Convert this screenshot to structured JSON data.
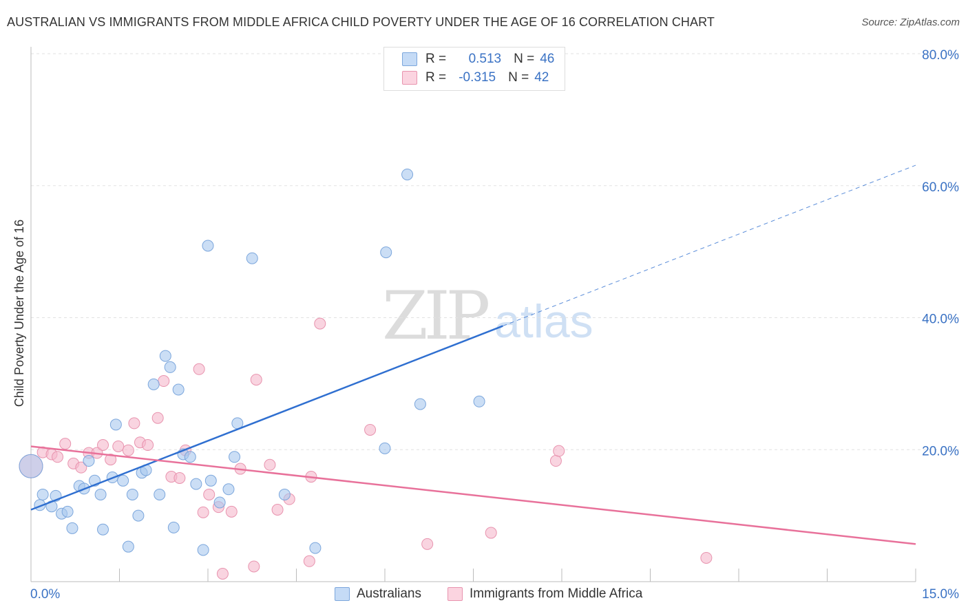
{
  "title": "AUSTRALIAN VS IMMIGRANTS FROM MIDDLE AFRICA CHILD POVERTY UNDER THE AGE OF 16 CORRELATION CHART",
  "source": "Source: ZipAtlas.com",
  "watermark": {
    "zip": "ZIP",
    "atlas": "atlas"
  },
  "legend": {
    "r_label": "R =",
    "n_label": "N =",
    "rows": [
      {
        "r": "0.513",
        "n": "46",
        "color": "#a9c8ef"
      },
      {
        "r": "-0.315",
        "n": "42",
        "color": "#f5b8cb"
      }
    ]
  },
  "colors": {
    "blue_point": "#a9c8ef",
    "blue_stroke": "#7ba6dc",
    "blue_line": "#2f6fd0",
    "pink_point": "#f5b8cb",
    "pink_stroke": "#e893ae",
    "pink_line": "#e8719a",
    "tick_label": "#3a72c4"
  },
  "chart_data": {
    "type": "scatter",
    "title": "AUSTRALIAN VS IMMIGRANTS FROM MIDDLE AFRICA CHILD POVERTY UNDER THE AGE OF 16 CORRELATION CHART",
    "xlabel": "",
    "ylabel": "Child Poverty Under the Age of 16",
    "xlim": [
      0,
      15
    ],
    "ylim": [
      0,
      80
    ],
    "x_tick_labels": [
      "0.0%",
      "15.0%"
    ],
    "y_ticks": [
      20,
      40,
      60,
      80
    ],
    "y_tick_labels": [
      "20.0%",
      "40.0%",
      "60.0%",
      "80.0%"
    ],
    "grid": true,
    "legend_position": "top-center",
    "series": [
      {
        "name": "Australians",
        "points": [
          [
            0.0,
            17.5
          ],
          [
            0.15,
            11.6
          ],
          [
            0.2,
            13.2
          ],
          [
            0.35,
            11.4
          ],
          [
            0.42,
            13.0
          ],
          [
            0.52,
            10.3
          ],
          [
            0.62,
            10.6
          ],
          [
            0.7,
            8.1
          ],
          [
            0.82,
            14.5
          ],
          [
            0.9,
            14.1
          ],
          [
            0.98,
            18.3
          ],
          [
            1.08,
            15.3
          ],
          [
            1.18,
            13.2
          ],
          [
            1.22,
            7.9
          ],
          [
            1.38,
            15.8
          ],
          [
            1.44,
            23.8
          ],
          [
            1.56,
            15.3
          ],
          [
            1.65,
            5.3
          ],
          [
            1.72,
            13.2
          ],
          [
            1.82,
            10.0
          ],
          [
            1.88,
            16.5
          ],
          [
            1.95,
            16.9
          ],
          [
            2.08,
            29.9
          ],
          [
            2.18,
            13.2
          ],
          [
            2.28,
            34.2
          ],
          [
            2.36,
            32.5
          ],
          [
            2.42,
            8.2
          ],
          [
            2.5,
            29.1
          ],
          [
            2.58,
            19.3
          ],
          [
            2.7,
            18.9
          ],
          [
            2.8,
            14.8
          ],
          [
            2.92,
            4.8
          ],
          [
            3.0,
            50.9
          ],
          [
            3.05,
            15.3
          ],
          [
            3.2,
            12.0
          ],
          [
            3.35,
            14.0
          ],
          [
            3.45,
            18.9
          ],
          [
            3.5,
            24.0
          ],
          [
            3.75,
            49.0
          ],
          [
            4.3,
            13.2
          ],
          [
            4.82,
            5.1
          ],
          [
            6.0,
            20.2
          ],
          [
            6.02,
            49.9
          ],
          [
            6.38,
            61.7
          ],
          [
            6.6,
            26.9
          ],
          [
            7.6,
            27.3
          ]
        ]
      },
      {
        "name": "Immigrants from Middle Africa",
        "points": [
          [
            0.0,
            17.5
          ],
          [
            0.2,
            19.6
          ],
          [
            0.35,
            19.3
          ],
          [
            0.45,
            18.9
          ],
          [
            0.58,
            20.9
          ],
          [
            0.72,
            17.9
          ],
          [
            0.85,
            17.3
          ],
          [
            0.98,
            19.5
          ],
          [
            1.12,
            19.5
          ],
          [
            1.22,
            20.7
          ],
          [
            1.35,
            18.5
          ],
          [
            1.48,
            20.5
          ],
          [
            1.65,
            19.9
          ],
          [
            1.75,
            24.0
          ],
          [
            1.85,
            21.1
          ],
          [
            1.98,
            20.7
          ],
          [
            2.15,
            24.8
          ],
          [
            2.25,
            30.4
          ],
          [
            2.38,
            15.9
          ],
          [
            2.52,
            15.7
          ],
          [
            2.62,
            19.9
          ],
          [
            2.85,
            32.2
          ],
          [
            2.92,
            10.5
          ],
          [
            3.02,
            13.2
          ],
          [
            3.18,
            11.3
          ],
          [
            3.25,
            1.2
          ],
          [
            3.4,
            10.6
          ],
          [
            3.55,
            17.1
          ],
          [
            3.78,
            2.3
          ],
          [
            3.82,
            30.6
          ],
          [
            4.05,
            17.7
          ],
          [
            4.18,
            10.9
          ],
          [
            4.38,
            12.5
          ],
          [
            4.72,
            3.1
          ],
          [
            4.75,
            15.9
          ],
          [
            4.9,
            39.1
          ],
          [
            5.75,
            23.0
          ],
          [
            6.72,
            5.7
          ],
          [
            7.8,
            7.4
          ],
          [
            8.9,
            18.3
          ],
          [
            8.95,
            19.8
          ],
          [
            11.45,
            3.6
          ]
        ]
      }
    ],
    "trend_lines": [
      {
        "series": "Australians",
        "x": [
          0.0,
          15.0
        ],
        "y": [
          10.9,
          63.1
        ],
        "solid_until_x": 8.0
      },
      {
        "series": "Immigrants from Middle Africa",
        "x": [
          0.0,
          15.0
        ],
        "y": [
          20.5,
          5.7
        ]
      }
    ]
  },
  "bottom_legend": [
    {
      "label": "Australians",
      "color": "#a9c8ef"
    },
    {
      "label": "Immigrants from Middle Africa",
      "color": "#f5b8cb"
    }
  ]
}
